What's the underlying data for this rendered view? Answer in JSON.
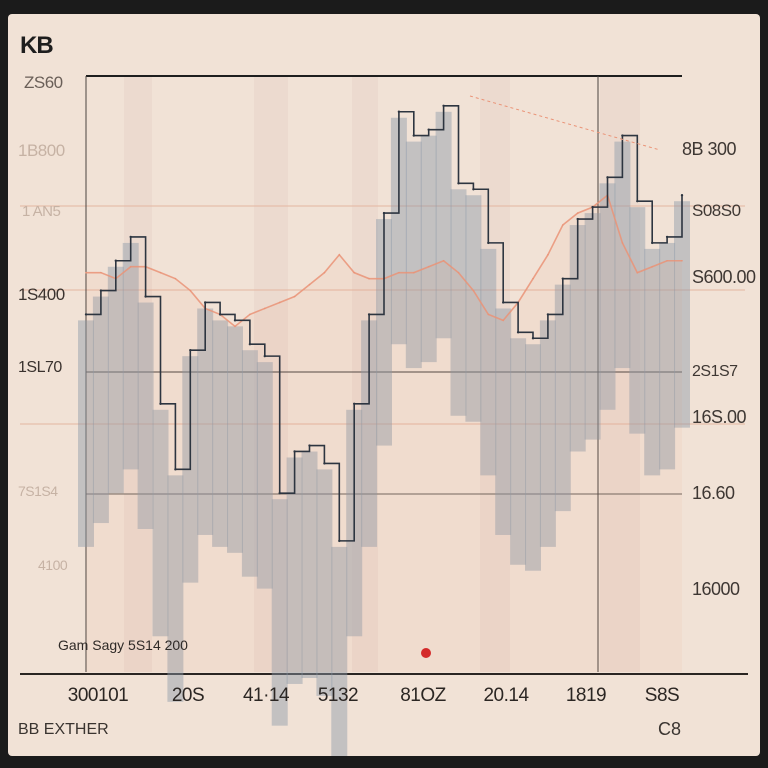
{
  "chart_data": {
    "type": "line",
    "title": "KB",
    "y_left_ticks": [
      "ZS60",
      "1B800",
      "1 AN5",
      "1S400",
      "1SL70",
      "7S1S4",
      "4100"
    ],
    "y_right_ticks": [
      "8B 300",
      "S08S0",
      "S600.00",
      "2S1S7",
      "16S.00",
      "16.60",
      "16000"
    ],
    "x_ticks": [
      "300101",
      "20S",
      "41·14",
      "5132",
      "81OZ",
      "20.14",
      "1819",
      "S8S"
    ],
    "annotation": "Gam Sagy 5S14 200",
    "footer_left": "BB EXTHER",
    "footer_right": "C8",
    "ylim": [
      0,
      100
    ],
    "grid": true,
    "series": [
      {
        "style": "candlestick-band",
        "color": "#8b99a8",
        "values": [
          60,
          64,
          69,
          73,
          63,
          45,
          34,
          54,
          62,
          60,
          59,
          55,
          53,
          30,
          37,
          38,
          35,
          22,
          45,
          60,
          77,
          94,
          90,
          91,
          95,
          82,
          81,
          72,
          62,
          57,
          56,
          60,
          66,
          76,
          78,
          83,
          90,
          79,
          72,
          73,
          80
        ]
      },
      {
        "style": "line",
        "color": "#ea9377",
        "values": [
          67,
          67,
          66,
          68,
          68,
          67,
          66,
          64,
          61,
          60,
          58,
          60,
          61,
          62,
          63,
          65,
          67,
          70,
          67,
          66,
          66,
          67,
          67,
          68,
          69,
          67,
          64,
          60,
          59,
          62,
          66,
          70,
          75,
          77,
          78,
          80,
          72,
          67,
          68,
          69,
          69
        ]
      }
    ]
  }
}
